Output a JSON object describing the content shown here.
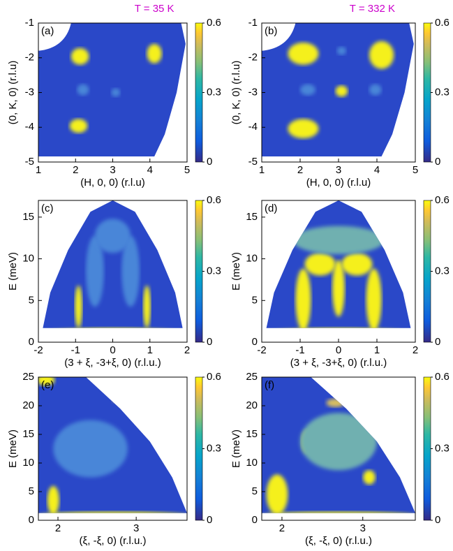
{
  "chart_data": [
    {
      "type": "heatmap",
      "panel": "(a)",
      "title": "T = 35 K",
      "xlabel": "(H, 0, 0) (r.l.u)",
      "ylabel": "(0, K, 0) (r.l.u)",
      "xlim": [
        1,
        5
      ],
      "xticks": [
        1,
        2,
        3,
        4,
        5
      ],
      "ylim": [
        -5,
        -1
      ],
      "yticks": [
        -5,
        -4,
        -3,
        -2,
        -1
      ],
      "clim": [
        0,
        0.6
      ],
      "cticks": [
        0,
        0.3,
        0.6
      ]
    },
    {
      "type": "heatmap",
      "panel": "(b)",
      "title": "T = 332 K",
      "xlabel": "(H, 0, 0) (r.l.u)",
      "ylabel": "(0, K, 0) (r.l.u)",
      "xlim": [
        1,
        5
      ],
      "xticks": [
        1,
        2,
        3,
        4,
        5
      ],
      "ylim": [
        -5,
        -1
      ],
      "yticks": [
        -5,
        -4,
        -3,
        -2,
        -1
      ],
      "clim": [
        0,
        0.6
      ],
      "cticks": [
        0,
        0.3,
        0.6
      ]
    },
    {
      "type": "heatmap",
      "panel": "(c)",
      "xlabel": "(3 + ξ, -3+ξ, 0) (r.l.u.)",
      "ylabel": "E (meV)",
      "xlim": [
        -2,
        2
      ],
      "xticks": [
        -2,
        -1,
        0,
        1,
        2
      ],
      "ylim": [
        0,
        17
      ],
      "yticks": [
        0,
        5,
        10,
        15
      ],
      "clim": [
        0,
        0.6
      ],
      "cticks": [
        0,
        0.3,
        0.6
      ]
    },
    {
      "type": "heatmap",
      "panel": "(d)",
      "xlabel": "(3 + ξ, -3+ξ, 0) (r.l.u.)",
      "ylabel": "E (meV)",
      "xlim": [
        -2,
        2
      ],
      "xticks": [
        -2,
        -1,
        0,
        1,
        2
      ],
      "ylim": [
        0,
        17
      ],
      "yticks": [
        0,
        5,
        10,
        15
      ],
      "clim": [
        0,
        0.6
      ],
      "cticks": [
        0,
        0.3,
        0.6
      ]
    },
    {
      "type": "heatmap",
      "panel": "(e)",
      "xlabel": "(ξ, -ξ, 0) (r.l.u.)",
      "ylabel": "E (meV)",
      "xlim": [
        1.75,
        3.65
      ],
      "xticks": [
        2,
        3
      ],
      "ylim": [
        0,
        25
      ],
      "yticks": [
        0,
        5,
        10,
        15,
        20,
        25
      ],
      "clim": [
        0,
        0.6
      ],
      "cticks": [
        0,
        0.3,
        0.6
      ]
    },
    {
      "type": "heatmap",
      "panel": "(f)",
      "xlabel": "(ξ, -ξ, 0) (r.l.u.)",
      "ylabel": "E (meV)",
      "xlim": [
        1.75,
        3.65
      ],
      "xticks": [
        2,
        3
      ],
      "ylim": [
        0,
        25
      ],
      "yticks": [
        0,
        5,
        10,
        15,
        20,
        25
      ],
      "clim": [
        0,
        0.6
      ],
      "cticks": [
        0,
        0.3,
        0.6
      ]
    }
  ]
}
